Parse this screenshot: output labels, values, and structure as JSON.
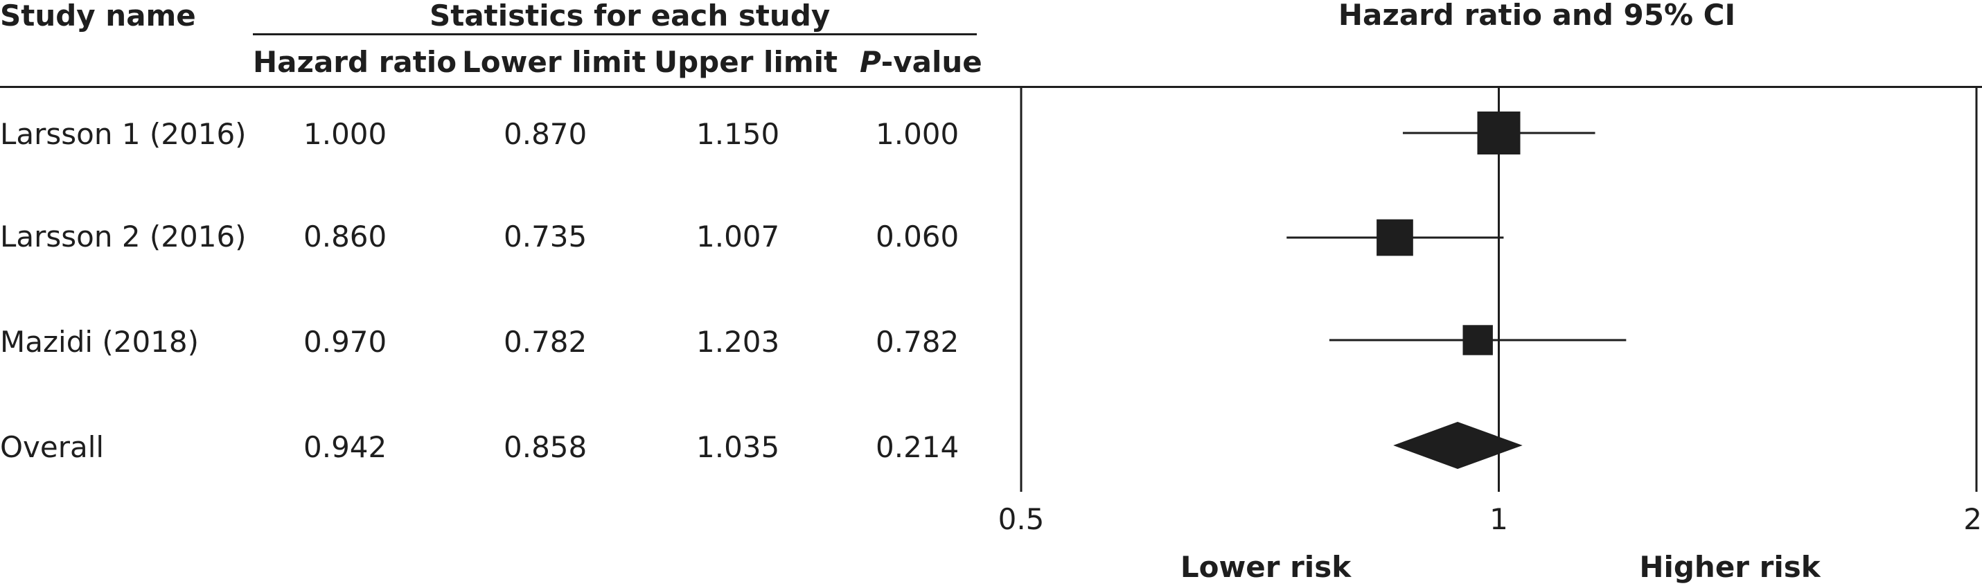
{
  "table": {
    "col_study": "Study name",
    "group_header": "Statistics for each study",
    "col_hr": "Hazard ratio",
    "col_lower": "Lower limit",
    "col_upper": "Upper limit",
    "col_p_italic": "P",
    "col_p_rest": "-value",
    "rows": [
      {
        "study": "Larsson 1 (2016)",
        "hr": "1.000",
        "lower": "0.870",
        "upper": "1.150",
        "p": "1.000"
      },
      {
        "study": "Larsson 2 (2016)",
        "hr": "0.860",
        "lower": "0.735",
        "upper": "1.007",
        "p": "0.060"
      },
      {
        "study": "Mazidi (2018)",
        "hr": "0.970",
        "lower": "0.782",
        "upper": "1.203",
        "p": "0.782"
      },
      {
        "study": "Overall",
        "hr": "0.942",
        "lower": "0.858",
        "upper": "1.035",
        "p": "0.214"
      }
    ]
  },
  "chart_data": {
    "type": "forest",
    "title": "Hazard ratio and 95% CI",
    "scale": "log",
    "xlim": [
      0.5,
      2
    ],
    "reference_line": 1,
    "ticks": [
      "0.5",
      "1",
      "2"
    ],
    "tick_values": [
      0.5,
      1,
      2
    ],
    "left_label": "Lower risk",
    "right_label": "Higher risk",
    "studies": [
      {
        "name": "Larsson 1 (2016)",
        "hr": 1.0,
        "lower": 0.87,
        "upper": 1.15,
        "marker": "square",
        "weight": 1.0
      },
      {
        "name": "Larsson 2 (2016)",
        "hr": 0.86,
        "lower": 0.735,
        "upper": 1.007,
        "marker": "square",
        "weight": 0.85
      },
      {
        "name": "Mazidi (2018)",
        "hr": 0.97,
        "lower": 0.782,
        "upper": 1.203,
        "marker": "square",
        "weight": 0.7
      },
      {
        "name": "Overall",
        "hr": 0.942,
        "lower": 0.858,
        "upper": 1.035,
        "marker": "diamond"
      }
    ],
    "color": "#1e1e1e"
  }
}
